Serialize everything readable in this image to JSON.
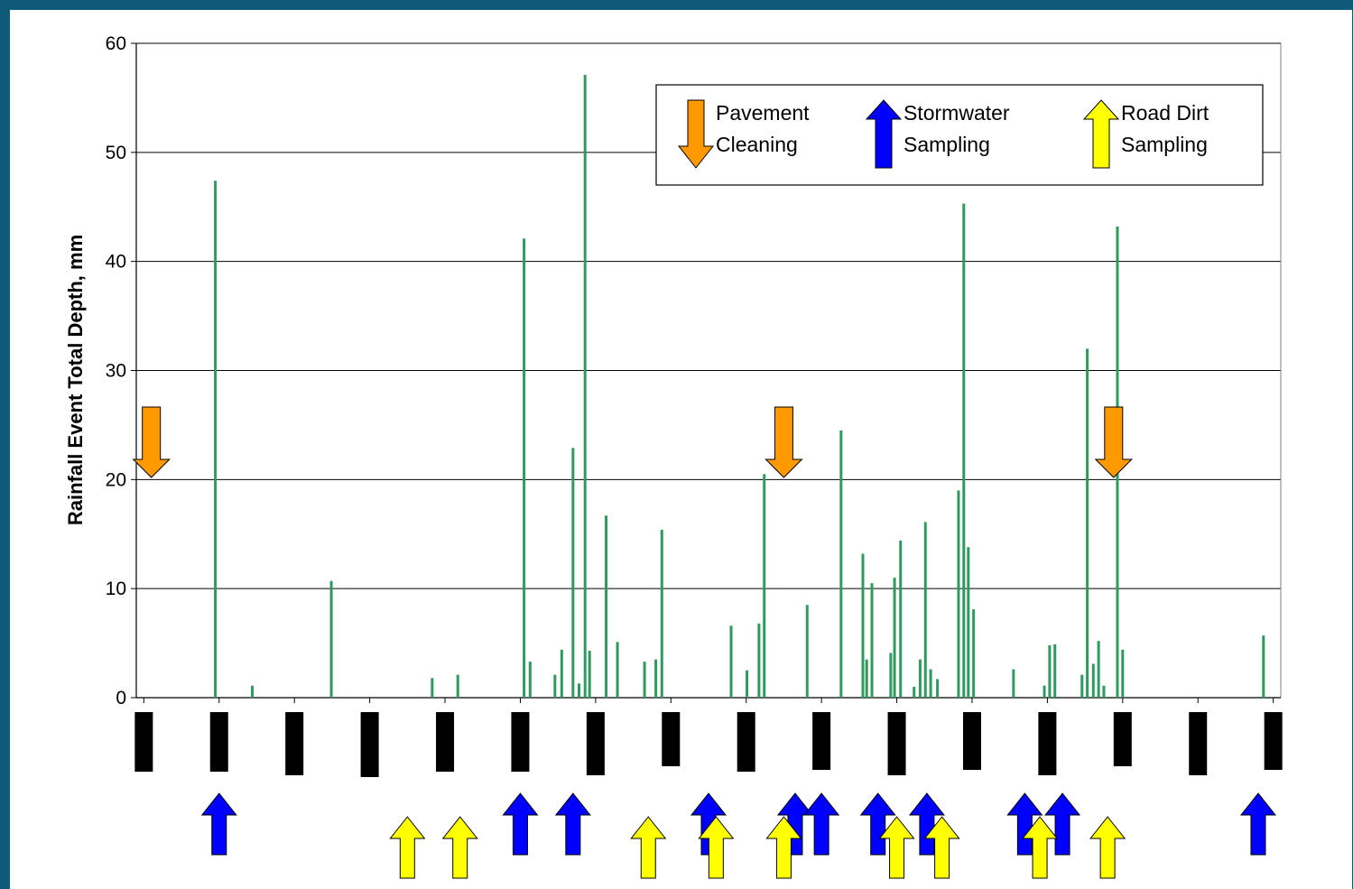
{
  "chart_data": {
    "type": "bar",
    "title": "",
    "xlabel": "",
    "ylabel": "Rainfall Event Total Depth, mm",
    "ylim": [
      0,
      60
    ],
    "yticks": [
      0,
      10,
      20,
      30,
      40,
      50,
      60
    ],
    "grid": true,
    "bar_color": "#2e9a5e",
    "series": [
      {
        "values": [
          [
            0.95,
            47.4
          ],
          [
            1.44,
            1.1
          ],
          [
            2.49,
            10.7
          ],
          [
            3.83,
            1.8
          ],
          [
            4.17,
            2.1
          ],
          [
            5.05,
            42.1
          ],
          [
            5.13,
            3.3
          ],
          [
            5.46,
            2.1
          ],
          [
            5.55,
            4.4
          ],
          [
            5.7,
            22.9
          ],
          [
            5.78,
            1.3
          ],
          [
            5.86,
            57.1
          ],
          [
            5.92,
            4.3
          ],
          [
            6.14,
            16.7
          ],
          [
            6.29,
            5.1
          ],
          [
            6.65,
            3.3
          ],
          [
            6.8,
            3.5
          ],
          [
            6.88,
            15.4
          ],
          [
            7.8,
            6.6
          ],
          [
            8.01,
            2.5
          ],
          [
            8.17,
            6.8
          ],
          [
            8.24,
            20.5
          ],
          [
            8.81,
            8.5
          ],
          [
            9.26,
            24.5
          ],
          [
            9.55,
            13.2
          ],
          [
            9.6,
            3.5
          ],
          [
            9.67,
            10.5
          ],
          [
            9.92,
            4.1
          ],
          [
            9.97,
            11.0
          ],
          [
            10.05,
            14.4
          ],
          [
            10.23,
            1.0
          ],
          [
            10.31,
            3.5
          ],
          [
            10.38,
            16.1
          ],
          [
            10.45,
            2.6
          ],
          [
            10.54,
            1.7
          ],
          [
            10.82,
            19.0
          ],
          [
            10.89,
            45.3
          ],
          [
            10.95,
            13.8
          ],
          [
            11.02,
            8.1
          ],
          [
            11.55,
            2.6
          ],
          [
            11.96,
            1.1
          ],
          [
            12.03,
            4.8
          ],
          [
            12.1,
            4.9
          ],
          [
            12.46,
            2.1
          ],
          [
            12.53,
            32.0
          ],
          [
            12.61,
            3.1
          ],
          [
            12.68,
            5.2
          ],
          [
            12.75,
            1.1
          ],
          [
            12.93,
            43.2
          ],
          [
            13.0,
            4.4
          ],
          [
            14.87,
            5.7
          ]
        ]
      }
    ],
    "legend": {
      "placement": "top-right",
      "items": [
        {
          "label_line1": "Pavement",
          "label_line2": "Cleaning",
          "marker": "orange-down-arrow"
        },
        {
          "label_line1": "Stormwater",
          "label_line2": "Sampling",
          "marker": "blue-up-arrow"
        },
        {
          "label_line1": "Road Dirt",
          "label_line2": "Sampling",
          "marker": "yellow-up-arrow"
        }
      ]
    },
    "period_markers": {
      "positions": [
        0,
        1,
        2,
        3,
        4,
        5,
        6,
        7,
        8,
        9,
        10,
        11,
        12,
        13,
        14,
        15
      ],
      "color": "#000000"
    },
    "events": {
      "pavement_cleaning": [
        0.1,
        8.5,
        12.88
      ],
      "stormwater_sampling": [
        1.0,
        5.0,
        5.7,
        7.5,
        8.65,
        9.0,
        9.75,
        10.4,
        11.7,
        12.2,
        14.8
      ],
      "road_dirt_sampling": [
        3.5,
        4.2,
        6.7,
        7.6,
        8.5,
        10.0,
        10.6,
        11.9,
        12.8
      ]
    },
    "colors": {
      "pavement_cleaning": "#ff9900",
      "stormwater_sampling": "#0000ff",
      "road_dirt_sampling": "#ffff00",
      "background": "#0f5a78"
    }
  }
}
